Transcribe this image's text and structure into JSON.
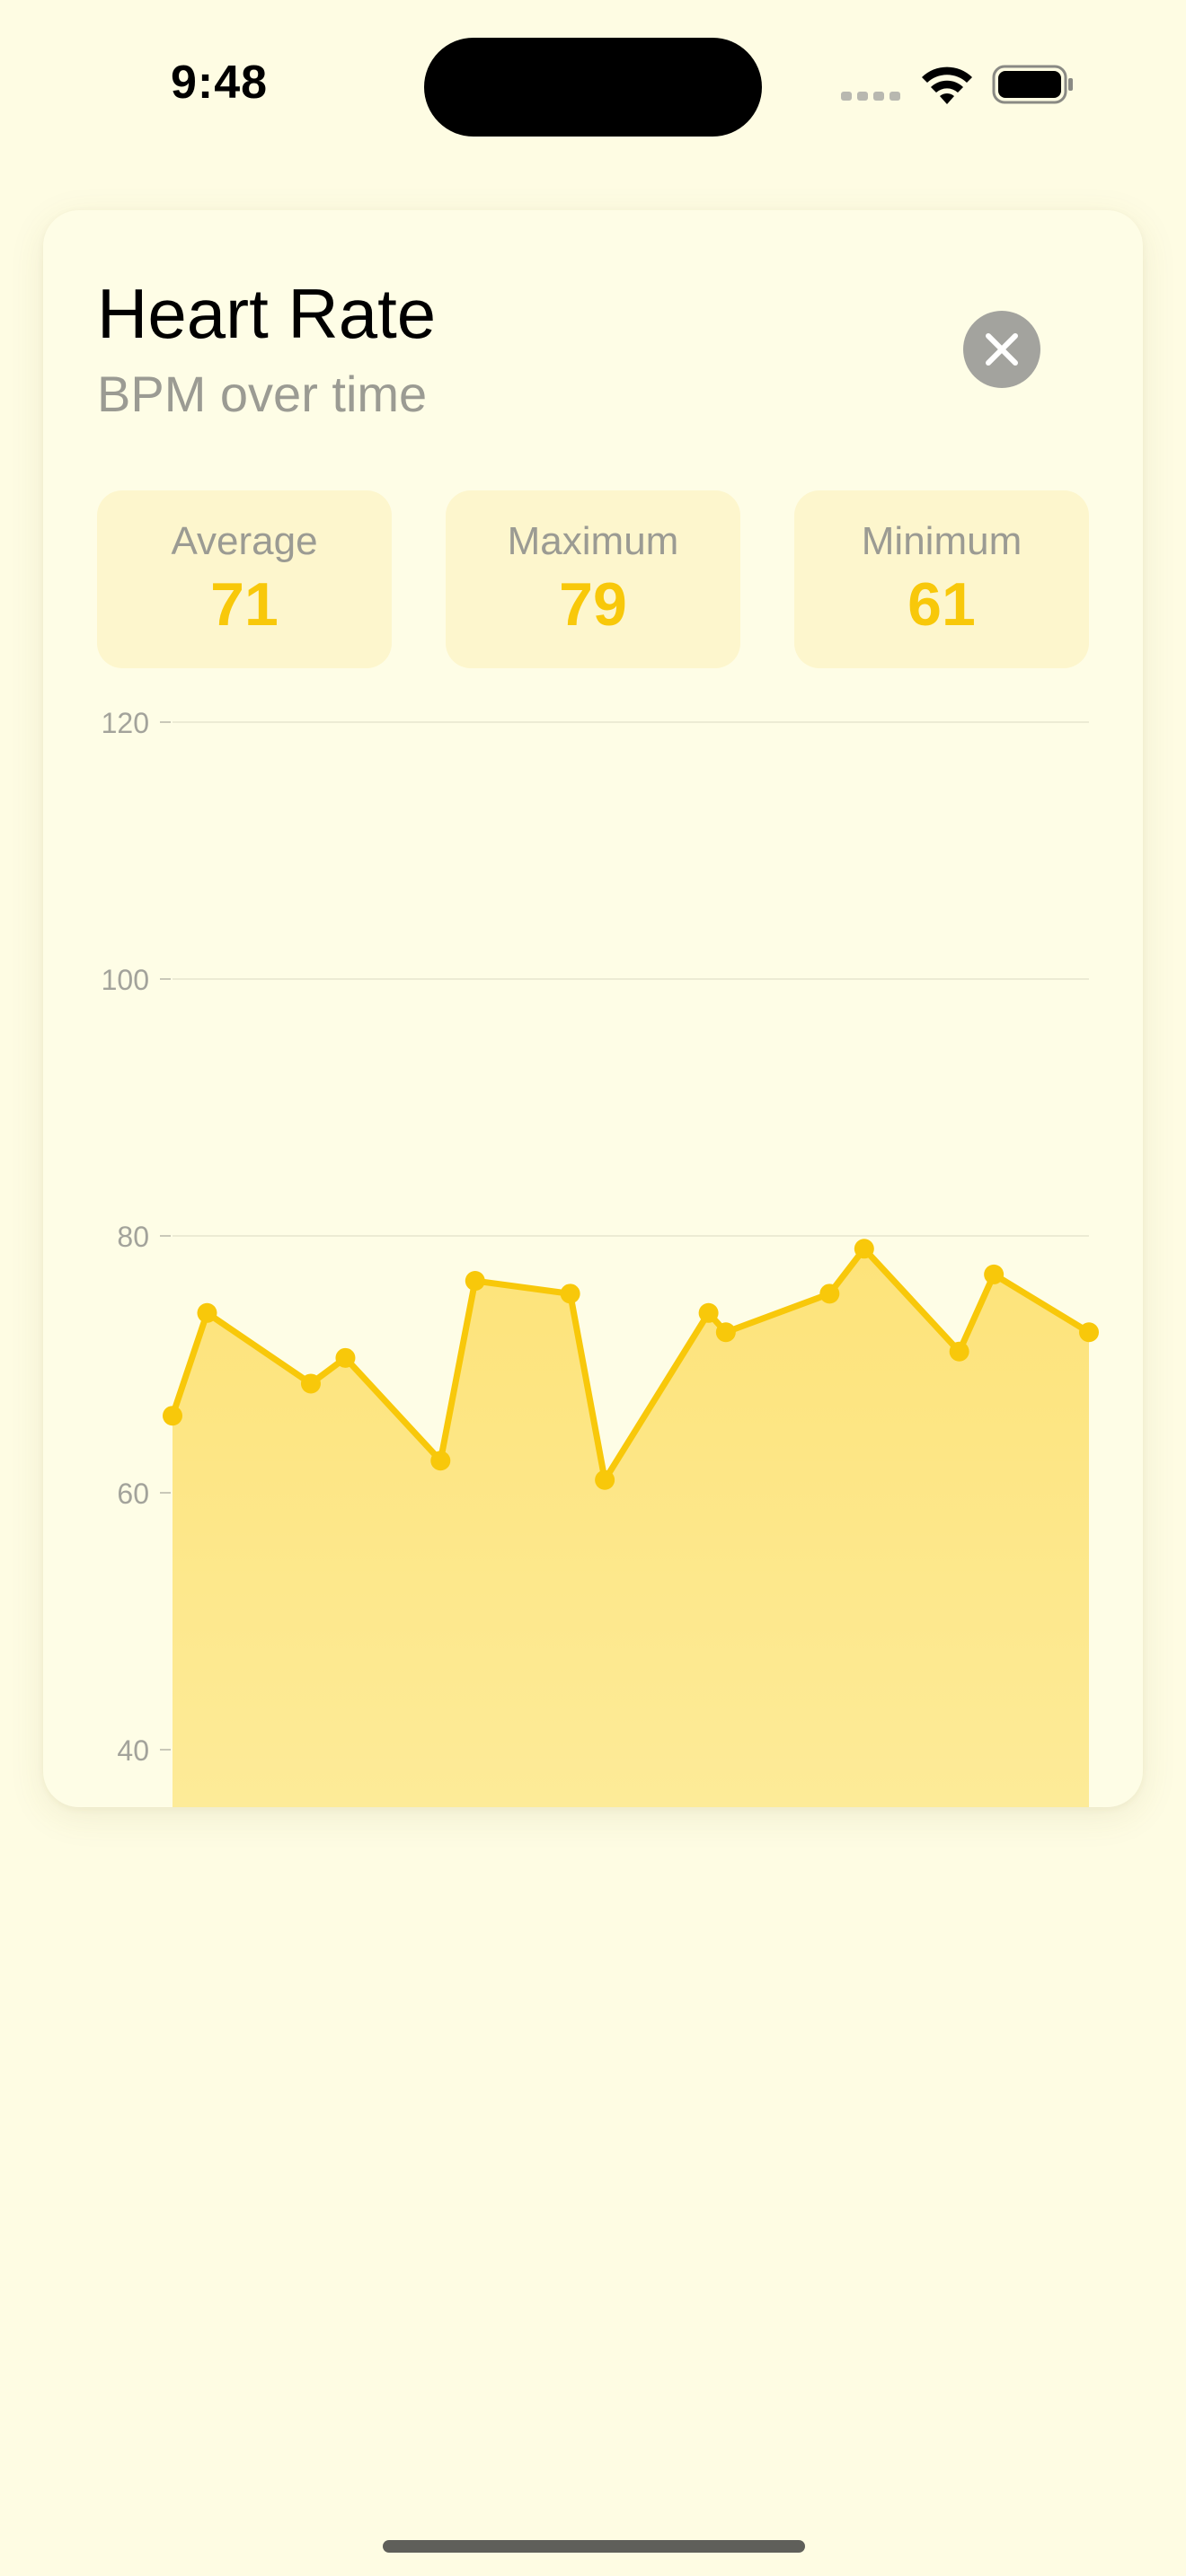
{
  "status_bar": {
    "time": "9:48",
    "icons": [
      "cellular-icon",
      "wifi-icon",
      "battery-icon"
    ]
  },
  "card": {
    "title": "Heart Rate",
    "subtitle": "BPM over time",
    "close_icon": "close-icon",
    "stats": [
      {
        "label": "Average",
        "value": "71"
      },
      {
        "label": "Maximum",
        "value": "79"
      },
      {
        "label": "Minimum",
        "value": "61"
      }
    ]
  },
  "colors": {
    "background": "#fefce3",
    "accent": "#f8c80a",
    "area_fill_top": "#fde37a",
    "area_fill_bottom": "#fdeb98",
    "stat_background": "#fdf6cd",
    "muted_text": "#9b9b93"
  },
  "chart_data": {
    "type": "area",
    "title": "",
    "xlabel": "",
    "ylabel": "",
    "ylim": [
      40,
      120
    ],
    "yticks": [
      120,
      100,
      80,
      60,
      40
    ],
    "grid": true,
    "x": [
      0,
      2,
      8,
      10,
      15.5,
      17.5,
      23,
      25,
      31,
      32,
      38,
      40,
      45.5,
      47.5,
      53
    ],
    "values": [
      66,
      74,
      68.5,
      70.5,
      62.5,
      76.5,
      75.5,
      61,
      74,
      72.5,
      75.5,
      79,
      71,
      77,
      72.5
    ]
  }
}
